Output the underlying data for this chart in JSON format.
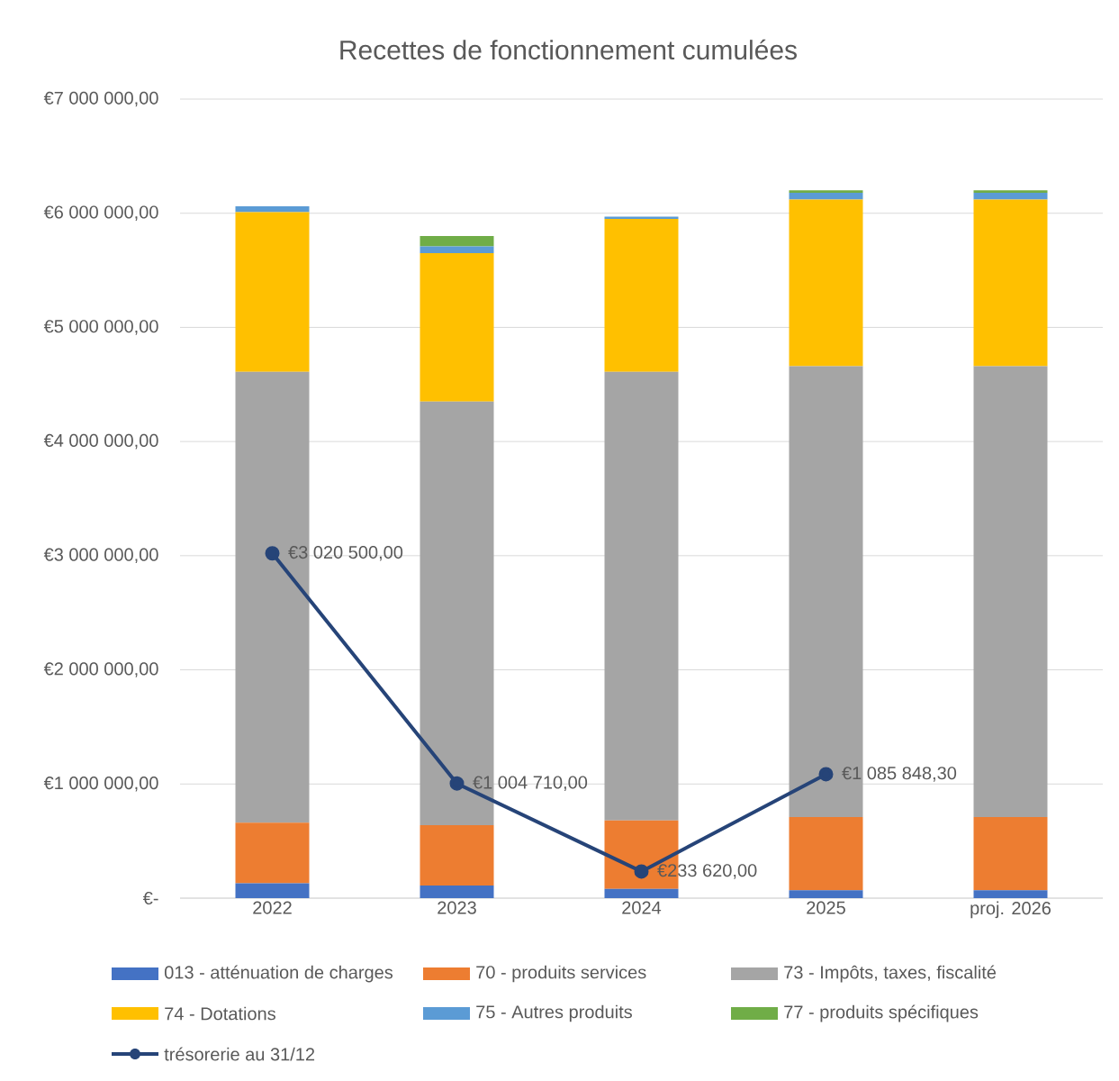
{
  "chart_data": {
    "type": "bar",
    "title": "Recettes de fonctionnement cumulées",
    "categories": [
      "2022",
      "2023",
      "2024",
      "2025",
      "proj. 2026"
    ],
    "stacked": true,
    "grid": "y",
    "legend": "bottom",
    "ylim": [
      0,
      7000000
    ],
    "yticks": [
      {
        "value": 0,
        "label": "€-"
      },
      {
        "value": 1000000,
        "label": "€1 000 000,00"
      },
      {
        "value": 2000000,
        "label": "€2 000 000,00"
      },
      {
        "value": 3000000,
        "label": "€3 000 000,00"
      },
      {
        "value": 4000000,
        "label": "€4 000 000,00"
      },
      {
        "value": 5000000,
        "label": "€5 000 000,00"
      },
      {
        "value": 6000000,
        "label": "€6 000 000,00"
      },
      {
        "value": 7000000,
        "label": "€7 000 000,00"
      }
    ],
    "series": [
      {
        "name": "013 - atténuation de charges",
        "color": "#4472c4",
        "values": [
          130000,
          110000,
          80000,
          70000,
          70000
        ]
      },
      {
        "name": "70 - produits services",
        "color": "#ed7d31",
        "values": [
          530000,
          530000,
          600000,
          640000,
          640000
        ]
      },
      {
        "name": "73 - Impôts, taxes, fiscalité",
        "color": "#a5a5a5",
        "values": [
          3950000,
          3710000,
          3930000,
          3950000,
          3950000
        ]
      },
      {
        "name": "74 - Dotations",
        "color": "#ffc000",
        "values": [
          1400000,
          1300000,
          1340000,
          1460000,
          1460000
        ]
      },
      {
        "name": "75 - Autres produits",
        "color": "#5b9bd5",
        "values": [
          50000,
          60000,
          20000,
          60000,
          60000
        ]
      },
      {
        "name": "77  - produits spécifiques",
        "color": "#70ad47",
        "values": [
          0,
          90000,
          0,
          20000,
          20000
        ]
      },
      {
        "name": "trésorerie au 31/12",
        "type": "line",
        "color": "#264478",
        "marker": "circle",
        "line_style": "solid",
        "values": [
          3020500,
          1004710,
          233620,
          1085848.3,
          null
        ],
        "value_labels": [
          "€3 020 500,00",
          "€1 004 710,00",
          "€233 620,00",
          "€1 085 848,30",
          null
        ]
      }
    ]
  }
}
